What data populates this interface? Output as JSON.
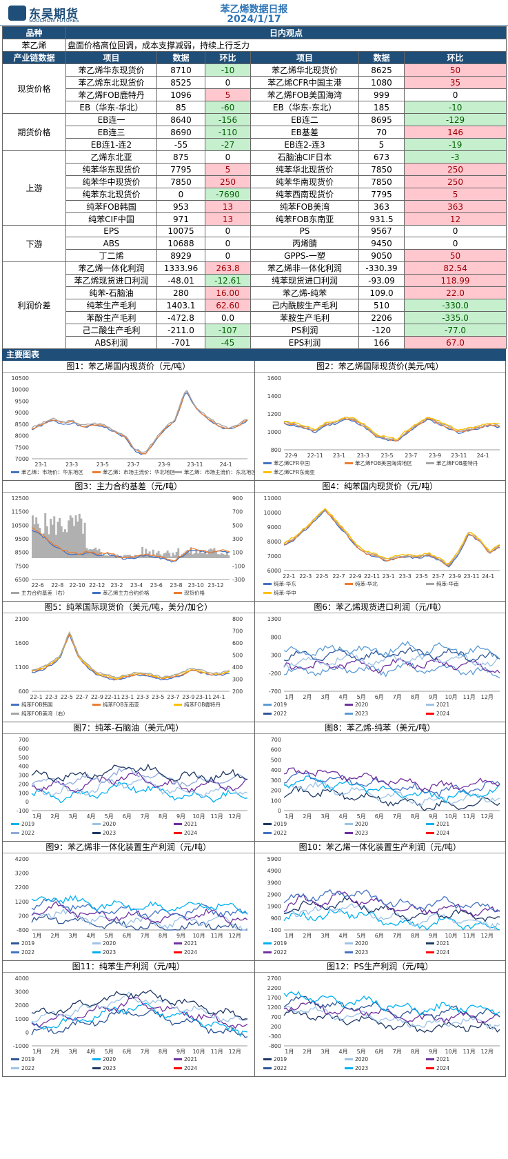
{
  "header": {
    "logo_cn": "东吴期货",
    "logo_en": "SOOCHOW FUTURES",
    "title": "苯乙烯数据日报",
    "date": "2024/1/17"
  },
  "view": {
    "h1": "品种",
    "h2": "日内观点",
    "product": "苯乙烯",
    "text": "盘面价格高位回调，成本支撑减弱，持续上行乏力"
  },
  "cols": {
    "chain": "产业链数据",
    "item": "项目",
    "data": "数据",
    "chg": "环比"
  },
  "groups": [
    {
      "name": "现货价格",
      "rows": [
        {
          "a": "苯乙烯华东现货价",
          "av": "8710",
          "ac": "-10",
          "at": "g",
          "b": "苯乙烯华北现货价",
          "bv": "8625",
          "bc": "50",
          "bt": "r"
        },
        {
          "a": "苯乙烯东北现货价",
          "av": "8525",
          "ac": "0",
          "at": "",
          "b": "苯乙烯CFR中国主港",
          "bv": "1080",
          "bc": "35",
          "bt": "r"
        },
        {
          "a": "苯乙烯FOB鹿特丹",
          "av": "1096",
          "ac": "5",
          "at": "r",
          "b": "苯乙烯FOB美国海湾",
          "bv": "999",
          "bc": "0",
          "bt": ""
        },
        {
          "a": "EB（华东-华北）",
          "av": "85",
          "ac": "-60",
          "at": "g",
          "b": "EB（华东-东北）",
          "bv": "185",
          "bc": "-10",
          "bt": "g"
        }
      ]
    },
    {
      "name": "期货价格",
      "rows": [
        {
          "a": "EB连一",
          "av": "8640",
          "ac": "-156",
          "at": "g",
          "b": "EB连二",
          "bv": "8695",
          "bc": "-129",
          "bt": "g"
        },
        {
          "a": "EB连三",
          "av": "8690",
          "ac": "-110",
          "at": "g",
          "b": "EB基差",
          "bv": "70",
          "bc": "146",
          "bt": "r"
        },
        {
          "a": "EB连1-连2",
          "av": "-55",
          "ac": "-27",
          "at": "g",
          "b": "EB连2-连3",
          "bv": "5",
          "bc": "-19",
          "bt": "g"
        }
      ]
    },
    {
      "name": "上游",
      "rows": [
        {
          "a": "乙烯东北亚",
          "av": "875",
          "ac": "0",
          "at": "",
          "b": "石脑油CIF日本",
          "bv": "673",
          "bc": "-3",
          "bt": "g"
        },
        {
          "a": "纯苯华东现货价",
          "av": "7795",
          "ac": "5",
          "at": "r",
          "b": "纯苯华北现货价",
          "bv": "7850",
          "bc": "250",
          "bt": "r"
        },
        {
          "a": "纯苯华中现货价",
          "av": "7850",
          "ac": "250",
          "at": "r",
          "b": "纯苯华南现货价",
          "bv": "7850",
          "bc": "250",
          "bt": "r"
        },
        {
          "a": "纯苯东北现货价",
          "av": "0",
          "ac": "-7690",
          "at": "g",
          "b": "纯苯西南现货价",
          "bv": "7795",
          "bc": "5",
          "bt": "r"
        },
        {
          "a": "纯苯FOB韩国",
          "av": "953",
          "ac": "13",
          "at": "r",
          "b": "纯苯FOB美湾",
          "bv": "363",
          "bc": "363",
          "bt": "r"
        },
        {
          "a": "纯苯CIF中国",
          "av": "971",
          "ac": "13",
          "at": "r",
          "b": "纯苯FOB东南亚",
          "bv": "931.5",
          "bc": "12",
          "bt": "r"
        }
      ]
    },
    {
      "name": "下游",
      "rows": [
        {
          "a": "EPS",
          "av": "10075",
          "ac": "0",
          "at": "",
          "b": "PS",
          "bv": "9567",
          "bc": "0",
          "bt": ""
        },
        {
          "a": "ABS",
          "av": "10688",
          "ac": "0",
          "at": "",
          "b": "丙烯腈",
          "bv": "9450",
          "bc": "0",
          "bt": ""
        },
        {
          "a": "丁二烯",
          "av": "8929",
          "ac": "0",
          "at": "",
          "b": "GPPS-一塑",
          "bv": "9050",
          "bc": "50",
          "bt": "r"
        }
      ]
    },
    {
      "name": "利润价差",
      "rows": [
        {
          "a": "苯乙烯一体化利润",
          "av": "1333.96",
          "ac": "263.8",
          "at": "r",
          "b": "苯乙烯非一体化利润",
          "bv": "-330.39",
          "bc": "82.54",
          "bt": "r"
        },
        {
          "a": "苯乙烯现货进口利润",
          "av": "-48.01",
          "ac": "-12.61",
          "at": "g",
          "b": "纯苯现货进口利润",
          "bv": "-93.09",
          "bc": "118.99",
          "bt": "r"
        },
        {
          "a": "纯苯-石脑油",
          "av": "280",
          "ac": "16.00",
          "at": "r",
          "b": "苯乙烯-纯苯",
          "bv": "109.0",
          "bc": "22.0",
          "bt": "r"
        },
        {
          "a": "纯苯生产毛利",
          "av": "1403.1",
          "ac": "62.60",
          "at": "r",
          "b": "己内酰胺生产毛利",
          "bv": "510",
          "bc": "-330.0",
          "bt": "g"
        },
        {
          "a": "苯酚生产毛利",
          "av": "-472.8",
          "ac": "0.0",
          "at": "",
          "b": "苯胺生产毛利",
          "bv": "2206",
          "bc": "-335.0",
          "bt": "g"
        },
        {
          "a": "己二酸生产毛利",
          "av": "-211.0",
          "ac": "-107",
          "at": "g",
          "b": "PS利润",
          "bv": "-120",
          "bc": "-77.0",
          "bt": "g"
        },
        {
          "a": "ABS利润",
          "av": "-701",
          "ac": "-45",
          "at": "g",
          "b": "EPS利润",
          "bv": "166",
          "bc": "67.0",
          "bt": "r"
        }
      ]
    }
  ],
  "charts_header": "主要图表",
  "chart_data": [
    {
      "type": "line",
      "title": "图1：苯乙烯国内现货价（元/吨）",
      "yticks": [
        "10500",
        "10000",
        "9500",
        "9000",
        "8500",
        "8000",
        "7500",
        "7000"
      ],
      "ylim": [
        7000,
        10500
      ],
      "xticks": [
        "23-1",
        "23-3",
        "23-5",
        "23-7",
        "23-9",
        "23-11",
        "24-1"
      ],
      "legend": [
        "苯乙烯：市场价：华东地区",
        "苯乙烯：市场主流价：华北地区",
        "苯乙烯：市场主流价：东北地区"
      ],
      "colors": [
        "#4472c4",
        "#ed7d31",
        "#a5a5a5"
      ],
      "shape": "s1",
      "base": [
        8300,
        8500,
        8700,
        8550,
        8600,
        8400,
        8500,
        8450,
        8200,
        8000,
        7400,
        7200,
        7800,
        8300,
        8700,
        10000,
        9200,
        8800,
        8500,
        8300,
        8400,
        8700
      ]
    },
    {
      "type": "line",
      "title": "图2：苯乙烯国际现货价(美元/吨）",
      "yticks": [
        "1600",
        "1400",
        "1200",
        "1000",
        "800"
      ],
      "ylim": [
        800,
        1600
      ],
      "xticks": [
        "22-9",
        "22-11",
        "23-1",
        "23-3",
        "23-5",
        "23-7",
        "23-9",
        "23-11",
        "24-1"
      ],
      "legend": [
        "苯乙烯CFR中国",
        "苯乙烯FOB美国海湾地区",
        "苯乙烯FOB鹿特丹",
        "苯乙烯CFR东南亚"
      ],
      "colors": [
        "#4472c4",
        "#ed7d31",
        "#a5a5a5",
        "#ffc000"
      ],
      "shape": "s2",
      "base": [
        1100,
        1080,
        1050,
        1000,
        1080,
        1100,
        1150,
        1120,
        1050,
        950,
        920,
        900,
        1000,
        1080,
        1150,
        1100,
        1050,
        1000,
        1020,
        1050,
        1080,
        1060
      ]
    },
    {
      "type": "line",
      "title": "图3：主力合约基差（元/吨）",
      "yticks": [
        "12500",
        "11500",
        "10500",
        "9500",
        "8500",
        "7500",
        "6500"
      ],
      "y2ticks": [
        "900",
        "700",
        "500",
        "300",
        "100",
        "-100",
        "-300"
      ],
      "ylim": [
        6500,
        12500
      ],
      "xticks": [
        "22-6",
        "22-8",
        "22-10",
        "22-12",
        "23-2",
        "23-4",
        "23-6",
        "23-8",
        "23-10",
        "23-12"
      ],
      "legend": [
        "主力合约基差（右）",
        "苯乙烯主力合约价格",
        "现货价格"
      ],
      "colors": [
        "#a5a5a5",
        "#4472c4",
        "#ed7d31"
      ],
      "shape": "s3",
      "base": [
        10200,
        9800,
        9200,
        8700,
        8400,
        8300,
        8500,
        8300,
        8400,
        8200,
        8000,
        8100,
        8300,
        8200,
        8000,
        7800,
        8200,
        8700,
        8600,
        8400,
        8600,
        8500
      ]
    },
    {
      "type": "line",
      "title": "图4：纯苯国内现货价（元/吨）",
      "yticks": [
        "11000",
        "10000",
        "9000",
        "8000",
        "7000",
        "6000"
      ],
      "ylim": [
        6000,
        11000
      ],
      "xticks": [
        "22-1",
        "22-3",
        "22-5",
        "22-7",
        "22-9",
        "22-11",
        "23-1",
        "23-3",
        "23-5",
        "23-7",
        "23-9",
        "23-11",
        "24-1"
      ],
      "legend": [
        "纯苯-华东",
        "纯苯-华北",
        "纯苯-华南",
        "纯苯-华中"
      ],
      "colors": [
        "#4472c4",
        "#ed7d31",
        "#a5a5a5",
        "#ffc000"
      ],
      "shape": "s4",
      "base": [
        7800,
        8200,
        8800,
        9500,
        10200,
        9400,
        8600,
        7700,
        7200,
        7000,
        6700,
        6900,
        7000,
        6900,
        7100,
        6800,
        6300,
        7200,
        8600,
        8100,
        7200,
        7700
      ]
    },
    {
      "type": "line",
      "title": "图5：纯苯国际现货价（美元/吨，美分/加仑）",
      "yticks": [
        "2100",
        "1600",
        "1100",
        "600"
      ],
      "y2ticks": [
        "800",
        "700",
        "600",
        "500",
        "400",
        "300",
        "200"
      ],
      "ylim": [
        600,
        2100
      ],
      "xticks": [
        "22-1",
        "22-3",
        "22-5",
        "22-7",
        "22-9",
        "22-11",
        "23-1",
        "23-3",
        "23-5",
        "23-7",
        "23-9",
        "23-11",
        "24-1"
      ],
      "legend": [
        "纯苯FOB韩国",
        "纯苯FOB东南亚",
        "纯苯FOB鹿特丹",
        "纯苯FOB美湾（右）"
      ],
      "colors": [
        "#4472c4",
        "#ed7d31",
        "#ffc000",
        "#a5a5a5"
      ],
      "shape": "s5",
      "base": [
        1000,
        1050,
        1150,
        1300,
        1800,
        1300,
        1100,
        950,
        900,
        850,
        900,
        950,
        950,
        900,
        850,
        900,
        950,
        1050,
        1000,
        950,
        950,
        1000
      ]
    },
    {
      "type": "line",
      "title": "图6：苯乙烯现货进口利润（元/吨）",
      "yticks": [
        "1300",
        "800",
        "300",
        "-200",
        "-700"
      ],
      "ylim": [
        -700,
        1300
      ],
      "xticks": [
        "1月",
        "2月",
        "3月",
        "4月",
        "5月",
        "6月",
        "7月",
        "8月",
        "9月",
        "10月",
        "11月",
        "12月"
      ],
      "legend": [
        "2019",
        "2020",
        "2021",
        "2022",
        "2023",
        "2024"
      ],
      "colors": [
        "#5b9bd5",
        "#7030a0",
        "#9dc3e6",
        "#2f5597",
        "#5b9bd5",
        "#ff0000"
      ],
      "shape": "season",
      "base": [
        200,
        300,
        250,
        350,
        300,
        250,
        400,
        300,
        350,
        300,
        250,
        200
      ]
    },
    {
      "type": "line",
      "title": "图7：纯苯-石脑油（美元/吨）",
      "yticks": [
        "700",
        "600",
        "500",
        "400",
        "300",
        "200",
        "100",
        "0",
        "-100"
      ],
      "ylim": [
        -100,
        700
      ],
      "xticks": [
        "1月",
        "2月",
        "3月",
        "4月",
        "5月",
        "6月",
        "7月",
        "8月",
        "9月",
        "10月",
        "11月",
        "12月"
      ],
      "legend": [
        "2019",
        "2020",
        "2021",
        "2022",
        "2023",
        "2024"
      ],
      "colors": [
        "#00b0f0",
        "#9dc3e6",
        "#7030a0",
        "#8faadc",
        "#1f3864",
        "#ff0000"
      ],
      "shape": "season",
      "base": [
        250,
        230,
        220,
        250,
        300,
        350,
        300,
        250,
        220,
        230,
        240,
        250
      ]
    },
    {
      "type": "line",
      "title": "图8：苯乙烯-纯苯（美元/吨）",
      "yticks": [
        "700",
        "600",
        "500",
        "400",
        "300",
        "200",
        "100",
        "0"
      ],
      "ylim": [
        0,
        700
      ],
      "xticks": [
        "1月",
        "2月",
        "3月",
        "4月",
        "5月",
        "6月",
        "7月",
        "8月",
        "9月",
        "10月",
        "11月",
        "12月"
      ],
      "legend": [
        "2019",
        "2020",
        "2021",
        "2022",
        "2023",
        "2024"
      ],
      "colors": [
        "#1f3864",
        "#9dc3e6",
        "#00b0f0",
        "#4472c4",
        "#7030a0",
        "#ff0000"
      ],
      "shape": "season",
      "base": [
        300,
        350,
        320,
        300,
        280,
        250,
        230,
        200,
        190,
        200,
        220,
        250
      ]
    },
    {
      "type": "line",
      "title": "图9：苯乙烯非一体化装置生产利润（元/吨）",
      "yticks": [
        "4200",
        "3200",
        "2200",
        "1200",
        "200",
        "-800"
      ],
      "ylim": [
        -800,
        4200
      ],
      "xticks": [
        "1月",
        "2月",
        "3月",
        "4月",
        "5月",
        "6月",
        "7月",
        "8月",
        "9月",
        "10月",
        "11月",
        "12月"
      ],
      "legend": [
        "2019",
        "2020",
        "2021",
        "2022",
        "2023",
        "2024"
      ],
      "colors": [
        "#2f5597",
        "#9dc3e6",
        "#7030a0",
        "#4472c4",
        "#00b0f0",
        "#ff0000"
      ],
      "shape": "season",
      "base": [
        800,
        1200,
        900,
        700,
        500,
        600,
        400,
        300,
        500,
        700,
        400,
        200
      ]
    },
    {
      "type": "line",
      "title": "图10：苯乙烯一体化装置生产利润（元/吨）",
      "yticks": [
        "5900",
        "4900",
        "3900",
        "2900",
        "1900",
        "900",
        "-100"
      ],
      "ylim": [
        -100,
        5900
      ],
      "xticks": [
        "1月",
        "2月",
        "3月",
        "4月",
        "5月",
        "6月",
        "7月",
        "8月",
        "9月",
        "10月",
        "11月",
        "12月"
      ],
      "legend": [
        "2019",
        "2020",
        "2021",
        "2022",
        "2023",
        "2024"
      ],
      "colors": [
        "#00b0f0",
        "#9dc3e6",
        "#1f3864",
        "#7030a0",
        "#4472c4",
        "#ff0000"
      ],
      "shape": "season",
      "base": [
        1800,
        2500,
        2200,
        2800,
        2400,
        2000,
        1600,
        1500,
        1800,
        1700,
        1400,
        1300
      ]
    },
    {
      "type": "line",
      "title": "图11：纯苯生产利润（元/吨）",
      "yticks": [
        "4000",
        "3000",
        "2000",
        "1000",
        "0",
        "-1000"
      ],
      "ylim": [
        -1000,
        4000
      ],
      "xticks": [
        "1月",
        "2月",
        "3月",
        "4月",
        "5月",
        "6月",
        "7月",
        "8月",
        "9月",
        "10月",
        "11月",
        "12月"
      ],
      "legend": [
        "2019",
        "2020",
        "2021",
        "2022",
        "2023",
        "2024"
      ],
      "colors": [
        "#2f5597",
        "#00b0f0",
        "#7030a0",
        "#9dc3e6",
        "#1f3864",
        "#ff0000"
      ],
      "shape": "season",
      "base": [
        1000,
        1200,
        1500,
        1800,
        2200,
        2600,
        2400,
        2000,
        1800,
        1400,
        1000,
        800
      ]
    },
    {
      "type": "line",
      "title": "图12：PS生产利润（元/吨）",
      "yticks": [
        "2700",
        "2200",
        "1700",
        "1200",
        "700",
        "200",
        "-300",
        "-800"
      ],
      "ylim": [
        -800,
        2700
      ],
      "xticks": [
        "1月",
        "2月",
        "3月",
        "4月",
        "5月",
        "6月",
        "7月",
        "8月",
        "9月",
        "10月",
        "11月",
        "12月"
      ],
      "legend": [
        "2019",
        "2020",
        "2021",
        "2022",
        "2023",
        "2024"
      ],
      "colors": [
        "#1f3864",
        "#9dc3e6",
        "#7030a0",
        "#2f5597",
        "#00b0f0",
        "#ff0000"
      ],
      "shape": "season",
      "base": [
        1500,
        1600,
        1400,
        1200,
        1300,
        1100,
        900,
        800,
        900,
        1000,
        900,
        800
      ]
    }
  ]
}
